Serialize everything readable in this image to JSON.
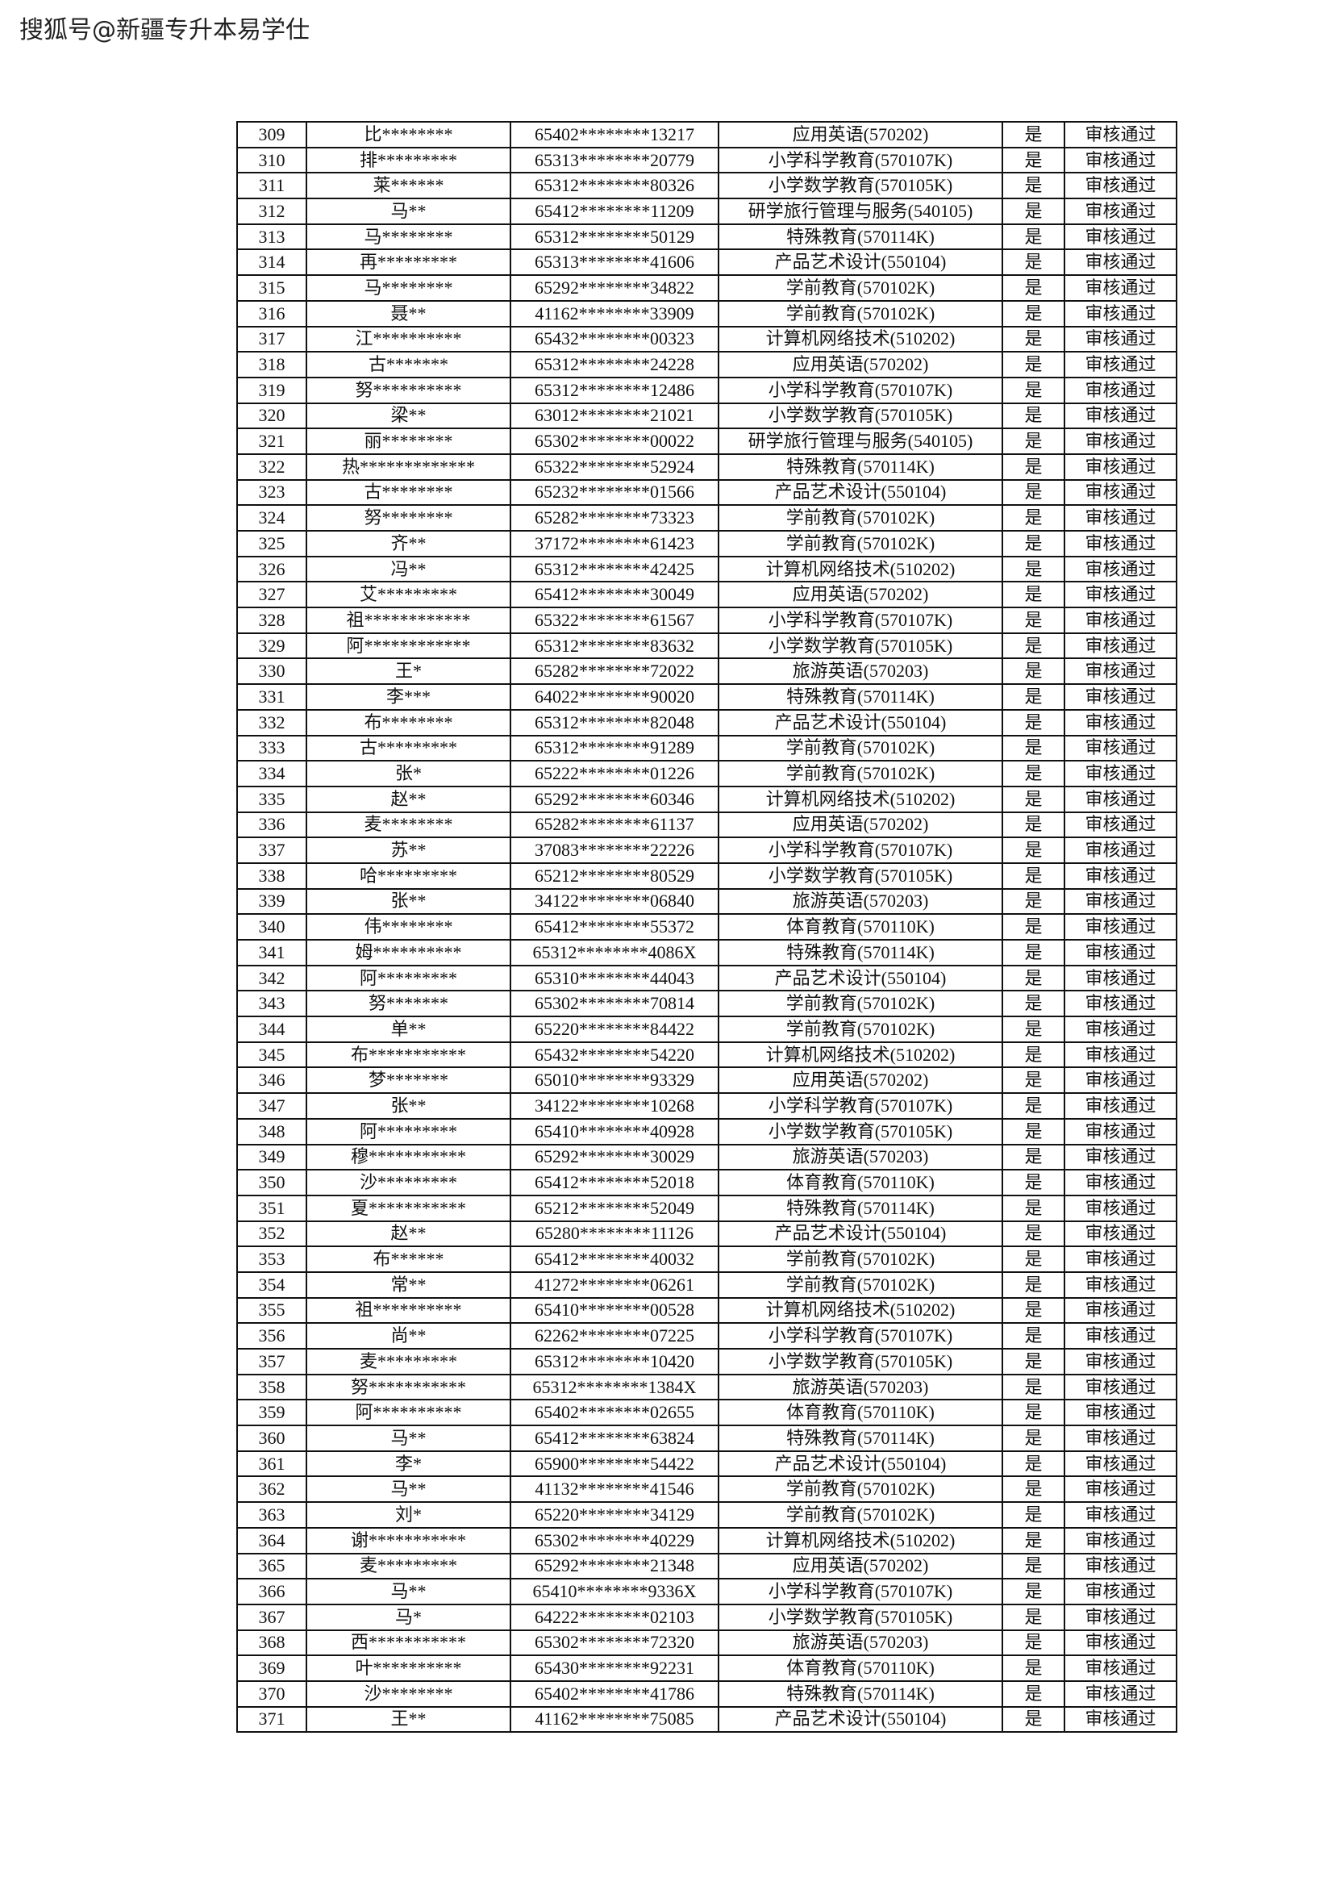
{
  "source_label": "搜狐号@新疆专升本易学仕",
  "table": {
    "rows": [
      [
        "309",
        "比********",
        "65402********13217",
        "应用英语(570202)",
        "是",
        "审核通过"
      ],
      [
        "310",
        "排*********",
        "65313********20779",
        "小学科学教育(570107K)",
        "是",
        "审核通过"
      ],
      [
        "311",
        "莱******",
        "65312********80326",
        "小学数学教育(570105K)",
        "是",
        "审核通过"
      ],
      [
        "312",
        "马**",
        "65412********11209",
        "研学旅行管理与服务(540105)",
        "是",
        "审核通过"
      ],
      [
        "313",
        "马********",
        "65312********50129",
        "特殊教育(570114K)",
        "是",
        "审核通过"
      ],
      [
        "314",
        "再*********",
        "65313********41606",
        "产品艺术设计(550104)",
        "是",
        "审核通过"
      ],
      [
        "315",
        "马********",
        "65292********34822",
        "学前教育(570102K)",
        "是",
        "审核通过"
      ],
      [
        "316",
        "聂**",
        "41162********33909",
        "学前教育(570102K)",
        "是",
        "审核通过"
      ],
      [
        "317",
        "江**********",
        "65432********00323",
        "计算机网络技术(510202)",
        "是",
        "审核通过"
      ],
      [
        "318",
        "古*******",
        "65312********24228",
        "应用英语(570202)",
        "是",
        "审核通过"
      ],
      [
        "319",
        "努**********",
        "65312********12486",
        "小学科学教育(570107K)",
        "是",
        "审核通过"
      ],
      [
        "320",
        "梁**",
        "63012********21021",
        "小学数学教育(570105K)",
        "是",
        "审核通过"
      ],
      [
        "321",
        "丽********",
        "65302********00022",
        "研学旅行管理与服务(540105)",
        "是",
        "审核通过"
      ],
      [
        "322",
        "热*************",
        "65322********52924",
        "特殊教育(570114K)",
        "是",
        "审核通过"
      ],
      [
        "323",
        "古********",
        "65232********01566",
        "产品艺术设计(550104)",
        "是",
        "审核通过"
      ],
      [
        "324",
        "努********",
        "65282********73323",
        "学前教育(570102K)",
        "是",
        "审核通过"
      ],
      [
        "325",
        "齐**",
        "37172********61423",
        "学前教育(570102K)",
        "是",
        "审核通过"
      ],
      [
        "326",
        "冯**",
        "65312********42425",
        "计算机网络技术(510202)",
        "是",
        "审核通过"
      ],
      [
        "327",
        "艾*********",
        "65412********30049",
        "应用英语(570202)",
        "是",
        "审核通过"
      ],
      [
        "328",
        "祖************",
        "65322********61567",
        "小学科学教育(570107K)",
        "是",
        "审核通过"
      ],
      [
        "329",
        "阿************",
        "65312********83632",
        "小学数学教育(570105K)",
        "是",
        "审核通过"
      ],
      [
        "330",
        "王*",
        "65282********72022",
        "旅游英语(570203)",
        "是",
        "审核通过"
      ],
      [
        "331",
        "李***",
        "64022********90020",
        "特殊教育(570114K)",
        "是",
        "审核通过"
      ],
      [
        "332",
        "布********",
        "65312********82048",
        "产品艺术设计(550104)",
        "是",
        "审核通过"
      ],
      [
        "333",
        "古*********",
        "65312********91289",
        "学前教育(570102K)",
        "是",
        "审核通过"
      ],
      [
        "334",
        "张*",
        "65222********01226",
        "学前教育(570102K)",
        "是",
        "审核通过"
      ],
      [
        "335",
        "赵**",
        "65292********60346",
        "计算机网络技术(510202)",
        "是",
        "审核通过"
      ],
      [
        "336",
        "麦********",
        "65282********61137",
        "应用英语(570202)",
        "是",
        "审核通过"
      ],
      [
        "337",
        "苏**",
        "37083********22226",
        "小学科学教育(570107K)",
        "是",
        "审核通过"
      ],
      [
        "338",
        "哈*********",
        "65212********80529",
        "小学数学教育(570105K)",
        "是",
        "审核通过"
      ],
      [
        "339",
        "张**",
        "34122********06840",
        "旅游英语(570203)",
        "是",
        "审核通过"
      ],
      [
        "340",
        "伟********",
        "65412********55372",
        "体育教育(570110K)",
        "是",
        "审核通过"
      ],
      [
        "341",
        "姆**********",
        "65312********4086X",
        "特殊教育(570114K)",
        "是",
        "审核通过"
      ],
      [
        "342",
        "阿*********",
        "65310********44043",
        "产品艺术设计(550104)",
        "是",
        "审核通过"
      ],
      [
        "343",
        "努*******",
        "65302********70814",
        "学前教育(570102K)",
        "是",
        "审核通过"
      ],
      [
        "344",
        "单**",
        "65220********84422",
        "学前教育(570102K)",
        "是",
        "审核通过"
      ],
      [
        "345",
        "布***********",
        "65432********54220",
        "计算机网络技术(510202)",
        "是",
        "审核通过"
      ],
      [
        "346",
        "梦*******",
        "65010********93329",
        "应用英语(570202)",
        "是",
        "审核通过"
      ],
      [
        "347",
        "张**",
        "34122********10268",
        "小学科学教育(570107K)",
        "是",
        "审核通过"
      ],
      [
        "348",
        "阿*********",
        "65410********40928",
        "小学数学教育(570105K)",
        "是",
        "审核通过"
      ],
      [
        "349",
        "穆***********",
        "65292********30029",
        "旅游英语(570203)",
        "是",
        "审核通过"
      ],
      [
        "350",
        "沙*********",
        "65412********52018",
        "体育教育(570110K)",
        "是",
        "审核通过"
      ],
      [
        "351",
        "夏***********",
        "65212********52049",
        "特殊教育(570114K)",
        "是",
        "审核通过"
      ],
      [
        "352",
        "赵**",
        "65280********11126",
        "产品艺术设计(550104)",
        "是",
        "审核通过"
      ],
      [
        "353",
        "布******",
        "65412********40032",
        "学前教育(570102K)",
        "是",
        "审核通过"
      ],
      [
        "354",
        "常**",
        "41272********06261",
        "学前教育(570102K)",
        "是",
        "审核通过"
      ],
      [
        "355",
        "祖**********",
        "65410********00528",
        "计算机网络技术(510202)",
        "是",
        "审核通过"
      ],
      [
        "356",
        "尚**",
        "62262********07225",
        "小学科学教育(570107K)",
        "是",
        "审核通过"
      ],
      [
        "357",
        "麦*********",
        "65312********10420",
        "小学数学教育(570105K)",
        "是",
        "审核通过"
      ],
      [
        "358",
        "努***********",
        "65312********1384X",
        "旅游英语(570203)",
        "是",
        "审核通过"
      ],
      [
        "359",
        "阿**********",
        "65402********02655",
        "体育教育(570110K)",
        "是",
        "审核通过"
      ],
      [
        "360",
        "马**",
        "65412********63824",
        "特殊教育(570114K)",
        "是",
        "审核通过"
      ],
      [
        "361",
        "李*",
        "65900********54422",
        "产品艺术设计(550104)",
        "是",
        "审核通过"
      ],
      [
        "362",
        "马**",
        "41132********41546",
        "学前教育(570102K)",
        "是",
        "审核通过"
      ],
      [
        "363",
        "刘*",
        "65220********34129",
        "学前教育(570102K)",
        "是",
        "审核通过"
      ],
      [
        "364",
        "谢***********",
        "65302********40229",
        "计算机网络技术(510202)",
        "是",
        "审核通过"
      ],
      [
        "365",
        "麦*********",
        "65292********21348",
        "应用英语(570202)",
        "是",
        "审核通过"
      ],
      [
        "366",
        "马**",
        "65410********9336X",
        "小学科学教育(570107K)",
        "是",
        "审核通过"
      ],
      [
        "367",
        "马*",
        "64222********02103",
        "小学数学教育(570105K)",
        "是",
        "审核通过"
      ],
      [
        "368",
        "西***********",
        "65302********72320",
        "旅游英语(570203)",
        "是",
        "审核通过"
      ],
      [
        "369",
        "叶**********",
        "65430********92231",
        "体育教育(570110K)",
        "是",
        "审核通过"
      ],
      [
        "370",
        "沙********",
        "65402********41786",
        "特殊教育(570114K)",
        "是",
        "审核通过"
      ],
      [
        "371",
        "王**",
        "41162********75085",
        "产品艺术设计(550104)",
        "是",
        "审核通过"
      ]
    ]
  }
}
